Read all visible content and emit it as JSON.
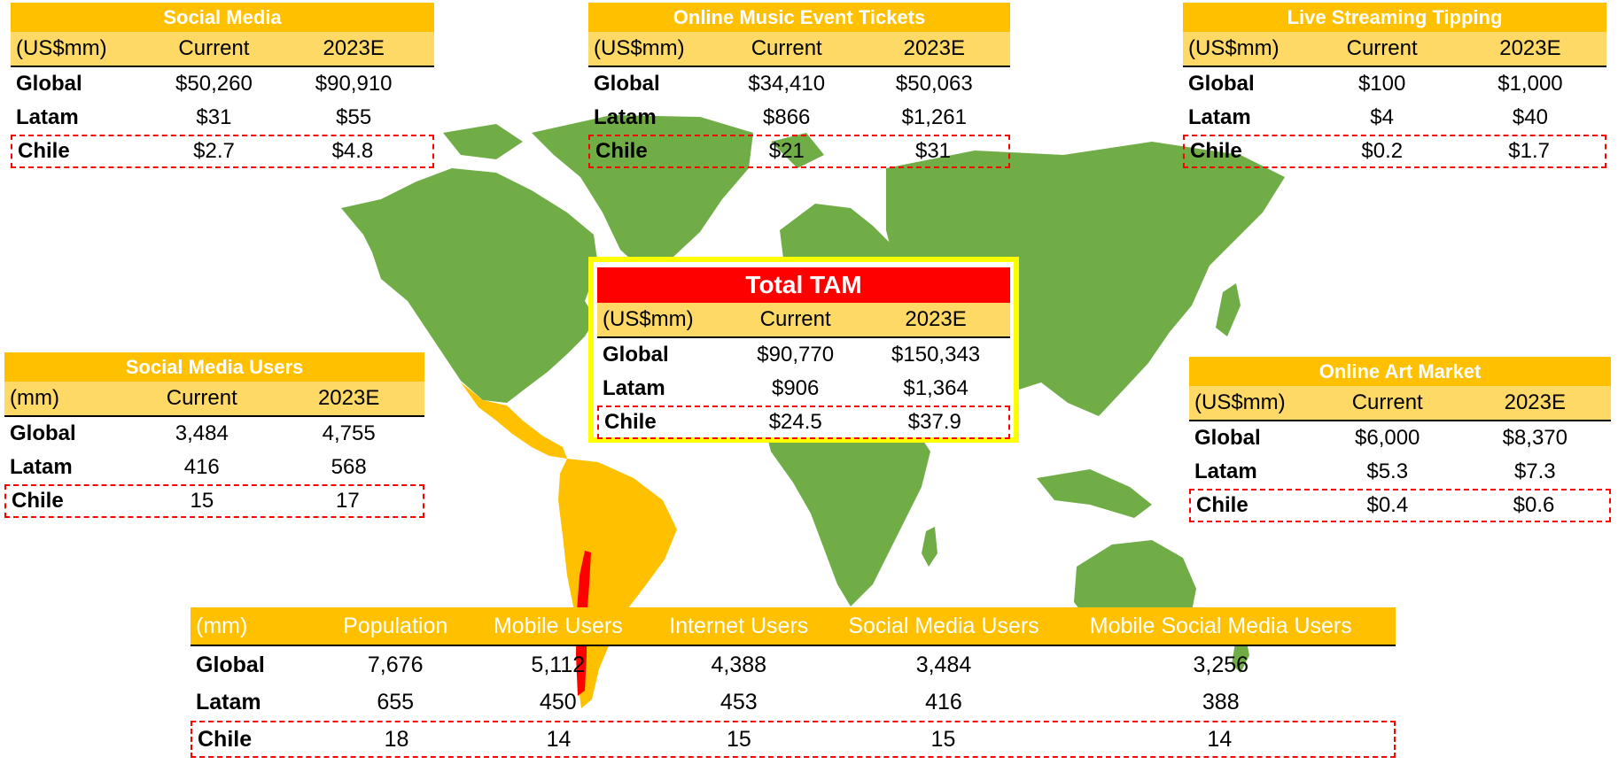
{
  "tables": {
    "social_media": {
      "title": "Social Media",
      "columns": [
        "(US$mm)",
        "Current",
        "2023E"
      ],
      "rows": [
        {
          "label": "Global",
          "current": "$50,260",
          "e2023": "$90,910"
        },
        {
          "label": "Latam",
          "current": "$31",
          "e2023": "$55"
        },
        {
          "label": "Chile",
          "current": "$2.7",
          "e2023": "$4.8"
        }
      ]
    },
    "music_tickets": {
      "title": "Online Music Event Tickets",
      "columns": [
        "(US$mm)",
        "Current",
        "2023E"
      ],
      "rows": [
        {
          "label": "Global",
          "current": "$34,410",
          "e2023": "$50,063"
        },
        {
          "label": "Latam",
          "current": "$866",
          "e2023": "$1,261"
        },
        {
          "label": "Chile",
          "current": "$21",
          "e2023": "$31"
        }
      ]
    },
    "tipping": {
      "title": "Live Streaming Tipping",
      "columns": [
        "(US$mm)",
        "Current",
        "2023E"
      ],
      "rows": [
        {
          "label": "Global",
          "current": "$100",
          "e2023": "$1,000"
        },
        {
          "label": "Latam",
          "current": "$4",
          "e2023": "$40"
        },
        {
          "label": "Chile",
          "current": "$0.2",
          "e2023": "$1.7"
        }
      ]
    },
    "social_users": {
      "title": "Social Media Users",
      "columns": [
        "(mm)",
        "Current",
        "2023E"
      ],
      "rows": [
        {
          "label": "Global",
          "current": "3,484",
          "e2023": "4,755"
        },
        {
          "label": "Latam",
          "current": "416",
          "e2023": "568"
        },
        {
          "label": "Chile",
          "current": "15",
          "e2023": "17"
        }
      ]
    },
    "art_market": {
      "title": "Online Art Market",
      "columns": [
        "(US$mm)",
        "Current",
        "2023E"
      ],
      "rows": [
        {
          "label": "Global",
          "current": "$6,000",
          "e2023": "$8,370"
        },
        {
          "label": "Latam",
          "current": "$5.3",
          "e2023": "$7.3"
        },
        {
          "label": "Chile",
          "current": "$0.4",
          "e2023": "$0.6"
        }
      ]
    },
    "total_tam": {
      "title": "Total TAM",
      "columns": [
        "(US$mm)",
        "Current",
        "2023E"
      ],
      "rows": [
        {
          "label": "Global",
          "current": "$90,770",
          "e2023": "$150,343"
        },
        {
          "label": "Latam",
          "current": "$906",
          "e2023": "$1,364"
        },
        {
          "label": "Chile",
          "current": "$24.5",
          "e2023": "$37.9"
        }
      ]
    },
    "demographics": {
      "columns": [
        "(mm)",
        "Population",
        "Mobile Users",
        "Internet Users",
        "Social Media Users",
        "Mobile Social Media Users"
      ],
      "rows": [
        {
          "label": "Global",
          "values": [
            "7,676",
            "5,112",
            "4,388",
            "3,484",
            "3,256"
          ]
        },
        {
          "label": "Latam",
          "values": [
            "655",
            "450",
            "453",
            "416",
            "388"
          ]
        },
        {
          "label": "Chile",
          "values": [
            "18",
            "14",
            "15",
            "15",
            "14"
          ]
        }
      ]
    }
  },
  "colors": {
    "map_land": "#70AD47",
    "latam_land": "#FFC000",
    "chile": "#FF0000",
    "header_gold": "#FFC000",
    "subheader_gold": "#FFD966",
    "tam_border": "#FFFF00",
    "tam_title": "#FF0000",
    "highlight_dash": "#FF0000"
  }
}
